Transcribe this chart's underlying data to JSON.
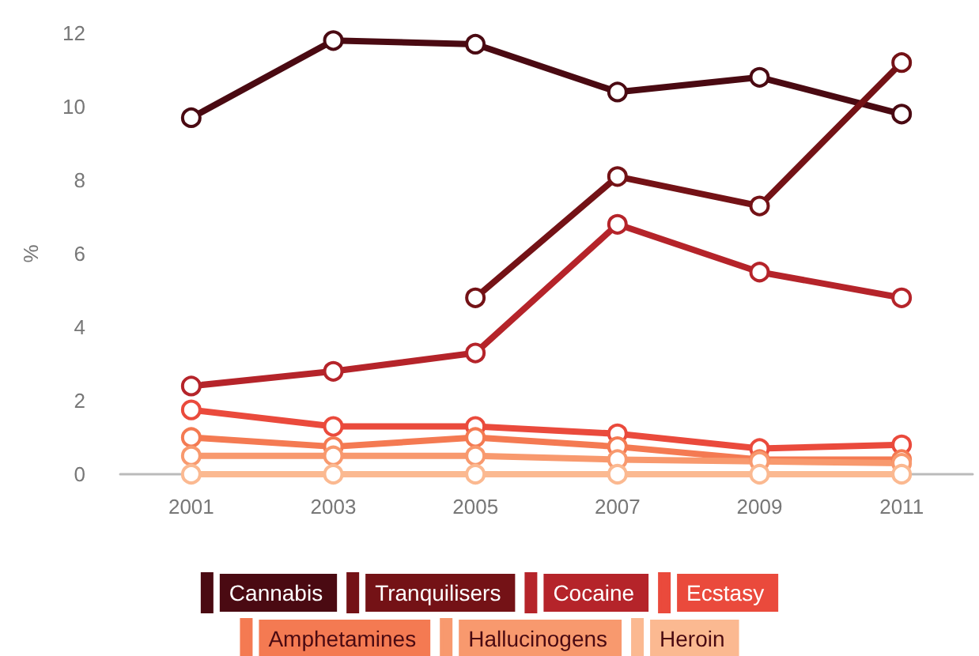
{
  "chart_data": {
    "type": "line",
    "ylabel": "%",
    "categories": [
      "2001",
      "2003",
      "2005",
      "2007",
      "2009",
      "2011"
    ],
    "ylim": [
      0,
      12
    ],
    "yticks": [
      0,
      2,
      4,
      6,
      8,
      10,
      12
    ],
    "grid": false,
    "legend": "bottom",
    "marker": "circle",
    "series": [
      {
        "name": "Cannabis",
        "color": "#4a0a12",
        "values": [
          9.7,
          11.8,
          11.7,
          10.4,
          10.8,
          9.8
        ]
      },
      {
        "name": "Tranquilisers",
        "color": "#741216",
        "values": [
          null,
          null,
          4.8,
          8.1,
          7.3,
          11.2
        ]
      },
      {
        "name": "Cocaine",
        "color": "#b5242a",
        "values": [
          2.4,
          2.8,
          3.3,
          6.8,
          5.5,
          4.8
        ]
      },
      {
        "name": "Ecstasy",
        "color": "#ea4a3c",
        "values": [
          1.75,
          1.3,
          1.3,
          1.1,
          0.7,
          0.8
        ]
      },
      {
        "name": "Amphetamines",
        "color": "#f47a52",
        "values": [
          1.0,
          0.75,
          1.0,
          0.75,
          0.4,
          0.4
        ]
      },
      {
        "name": "Hallucinogens",
        "color": "#f8996e",
        "values": [
          0.5,
          0.5,
          0.5,
          0.4,
          0.35,
          0.3
        ]
      },
      {
        "name": "Heroin",
        "color": "#fbb991",
        "values": [
          0,
          0,
          0,
          0,
          0,
          0
        ]
      }
    ]
  }
}
